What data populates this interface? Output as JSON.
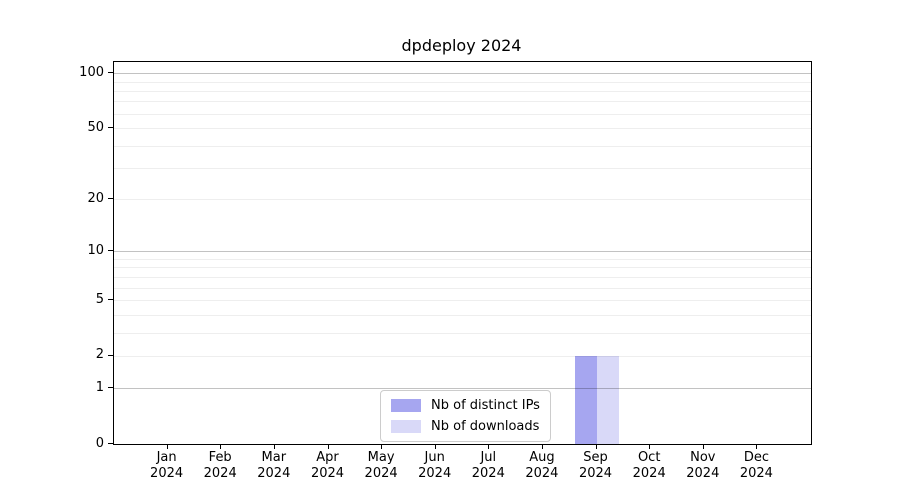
{
  "chart_data": {
    "type": "bar",
    "title": "dpdeploy 2024",
    "categories": [
      "Jan 2024",
      "Feb 2024",
      "Mar 2024",
      "Apr 2024",
      "May 2024",
      "Jun 2024",
      "Jul 2024",
      "Aug 2024",
      "Sep 2024",
      "Oct 2024",
      "Nov 2024",
      "Dec 2024"
    ],
    "series": [
      {
        "name": "Nb of distinct IPs",
        "color": "#a6a6f0",
        "values": [
          0,
          0,
          0,
          0,
          0,
          0,
          0,
          0,
          2,
          0,
          0,
          0
        ]
      },
      {
        "name": "Nb of downloads",
        "color": "#d9d9f8",
        "values": [
          0,
          0,
          0,
          0,
          0,
          0,
          0,
          0,
          2,
          0,
          0,
          0
        ]
      }
    ],
    "xlabel": "",
    "ylabel": "",
    "yscale": "log1p",
    "ylim": [
      0,
      115
    ],
    "y_tick_labels": [
      0,
      1,
      2,
      5,
      10,
      20,
      50,
      100
    ],
    "y_gridlines_major": [
      1,
      10,
      100
    ],
    "y_gridlines_minor": [
      2,
      3,
      4,
      5,
      6,
      7,
      8,
      9,
      20,
      30,
      40,
      50,
      60,
      70,
      80,
      90
    ],
    "grid": "on",
    "legend_position": "lower center",
    "legend_border_color": "#cccccc",
    "background_color": "#ffffff",
    "axis_color": "#000000"
  }
}
